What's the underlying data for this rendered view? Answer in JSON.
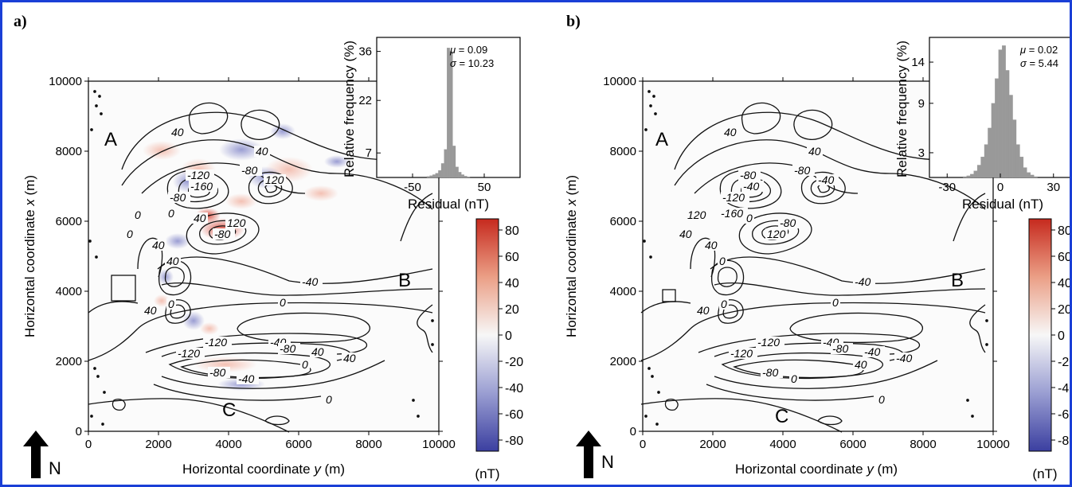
{
  "north": "N",
  "colorbar_unit": "(nT)",
  "colors": {
    "frame_border": "#1a3fd6",
    "residual_positive": "#c62a1e",
    "residual_negative": "#3b3fa0",
    "histogram_bar": "#999999"
  },
  "panels": [
    {
      "label": "a)",
      "xlabel_pre": "Horizontal coordinate ",
      "xlabel_var": "y",
      "xlabel_post": " (m)",
      "ylabel_pre": "Horizontal coordinate ",
      "ylabel_var": "x",
      "ylabel_post": " (m)",
      "regions": [
        "A",
        "B",
        "C"
      ],
      "map_ticks": {
        "x": [
          "0",
          "2000",
          "4000",
          "6000",
          "8000",
          "10000"
        ],
        "y": [
          "0",
          "2000",
          "4000",
          "6000",
          "8000",
          "10000"
        ]
      },
      "contour_labels": [
        "40",
        "40",
        "-160",
        "-80",
        "-120",
        "-80",
        "120",
        "0",
        "-80",
        "120",
        "0",
        "40",
        "0",
        "40",
        "40",
        "-40",
        "0",
        "40",
        "0",
        "-40",
        "-80",
        "-120",
        "-120",
        "-80",
        "40",
        "0",
        "-40",
        "40",
        "0"
      ],
      "hist": {
        "mu": "0.09",
        "sigma": "10.23",
        "xlabel": "Residual (nT)",
        "ylabel": "Relative frequency (%)",
        "xticks": [
          "-50",
          "50"
        ],
        "yticks": [
          "7",
          "22",
          "36"
        ]
      },
      "colorbar_ticks": [
        "80",
        "60",
        "40",
        "20",
        "0",
        "-20",
        "-40",
        "-60",
        "-80"
      ]
    },
    {
      "label": "b)",
      "xlabel_pre": "Horizontal coordinate ",
      "xlabel_var": "y",
      "xlabel_post": " (m)",
      "ylabel_pre": "Horizontal coordinate ",
      "ylabel_var": "x",
      "ylabel_post": " (m)",
      "regions": [
        "A",
        "B",
        "C"
      ],
      "map_ticks": {
        "x": [
          "0",
          "2000",
          "4000",
          "6000",
          "8000",
          "10000"
        ],
        "y": [
          "0",
          "2000",
          "4000",
          "6000",
          "8000",
          "10000"
        ]
      },
      "contour_labels": [
        "40",
        "40",
        "-40",
        "-120",
        "-80",
        "-80",
        "-40",
        "-160",
        "120",
        "-80",
        "120",
        "0",
        "40",
        "40",
        "0",
        "-40",
        "0",
        "40",
        "0",
        "-40",
        "-80",
        "-120",
        "-120",
        "-80",
        "-40",
        "40",
        "0",
        "-40",
        "0"
      ],
      "hist": {
        "mu": "0.02",
        "sigma": "5.44",
        "xlabel": "Residual (nT)",
        "ylabel": "Relative frequency (%)",
        "xticks": [
          "-30",
          "0",
          "30"
        ],
        "yticks": [
          "3",
          "9",
          "14"
        ]
      },
      "colorbar_ticks": [
        "80",
        "60",
        "40",
        "20",
        "0",
        "-20",
        "-40",
        "-60",
        "-80"
      ]
    }
  ],
  "chart_data": [
    {
      "type": "bar",
      "title": "",
      "xlabel": "Residual (nT)",
      "ylabel": "Relative frequency (%)",
      "annotations": [
        "μ = 0.09",
        "σ = 10.23"
      ],
      "xlim": [
        -100,
        100
      ],
      "ylim": [
        0,
        40
      ],
      "x": [
        -28,
        -24,
        -20,
        -16,
        -12,
        -8,
        -4,
        0,
        4,
        8,
        12,
        16,
        20,
        24,
        28
      ],
      "values": [
        0.3,
        0.5,
        0.8,
        1.2,
        2,
        4,
        8,
        37,
        36,
        9,
        3,
        1.5,
        0.8,
        0.4,
        0.2
      ]
    },
    {
      "type": "bar",
      "title": "",
      "xlabel": "Residual (nT)",
      "ylabel": "Relative frequency (%)",
      "annotations": [
        "μ = 0.02",
        "σ = 5.44"
      ],
      "xlim": [
        -40,
        40
      ],
      "ylim": [
        0,
        17
      ],
      "x": [
        -20,
        -18,
        -16,
        -14,
        -12,
        -10,
        -8,
        -6,
        -4,
        -2,
        0,
        2,
        4,
        6,
        8,
        10,
        12,
        14,
        16,
        18,
        20
      ],
      "values": [
        0.1,
        0.2,
        0.4,
        0.8,
        1.5,
        2.5,
        4,
        6,
        9,
        12,
        15.5,
        16,
        13,
        10,
        7,
        4,
        2.5,
        1.2,
        0.6,
        0.3,
        0.1
      ]
    }
  ]
}
